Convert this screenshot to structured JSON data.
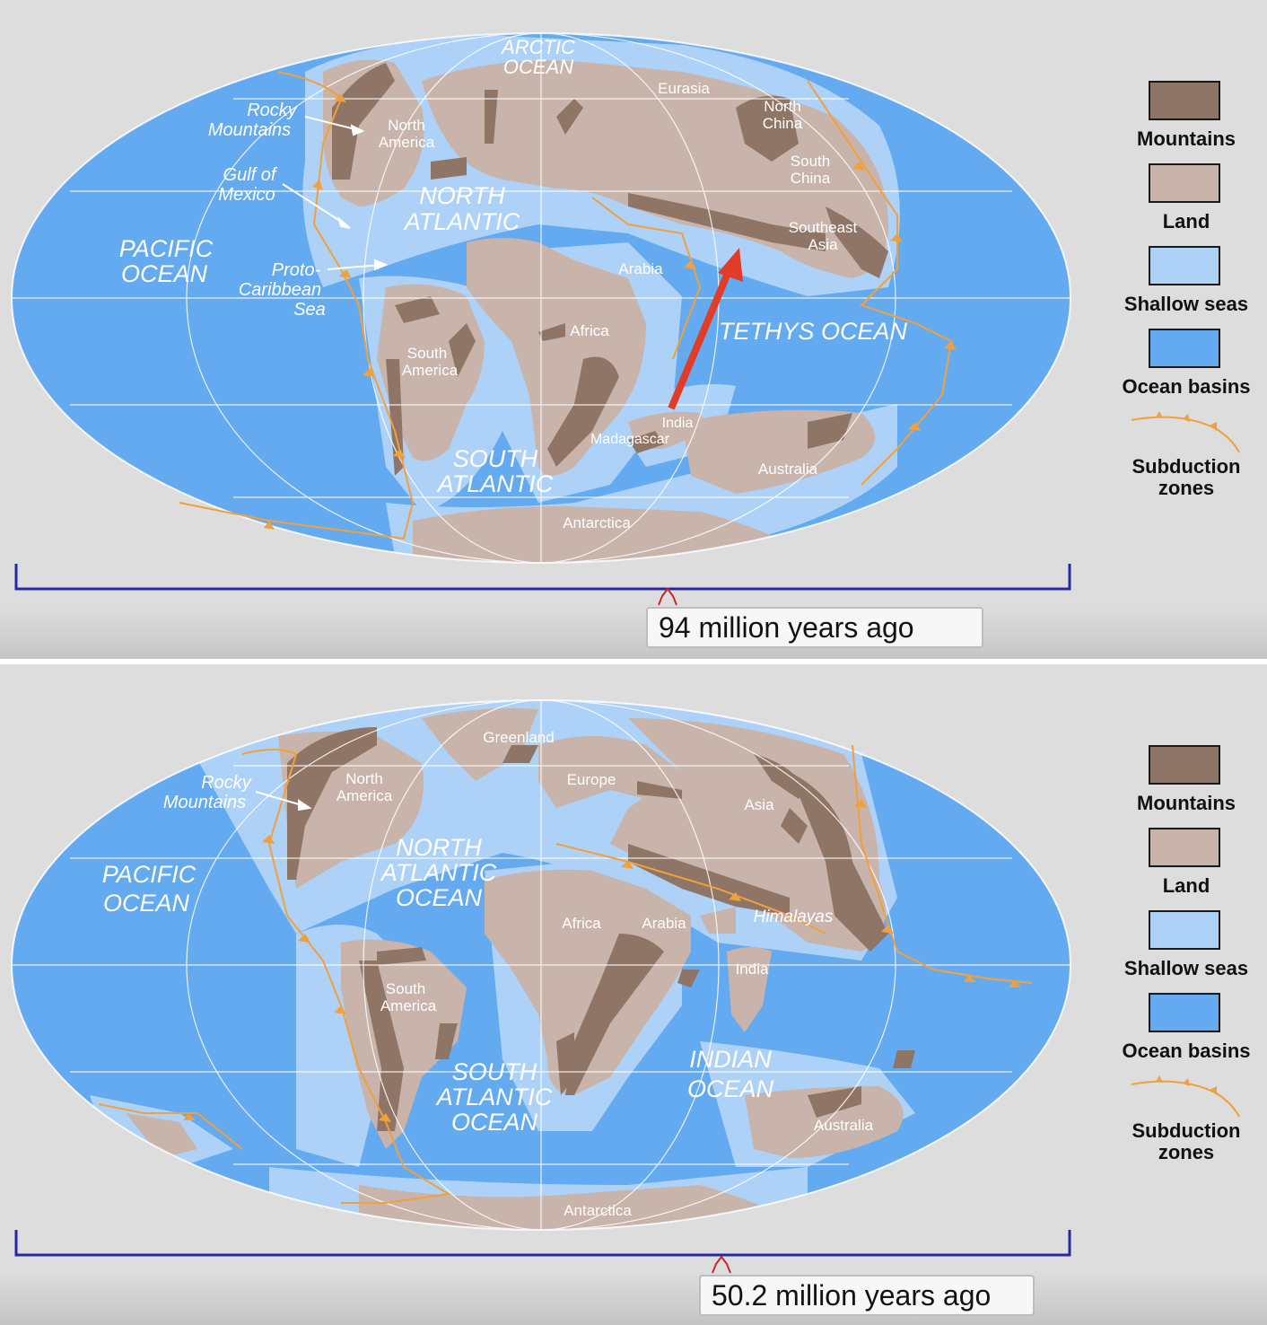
{
  "panels": [
    {
      "time_label": "94 million years ago",
      "labels": {
        "arctic_ocean_1": "ARCTIC",
        "arctic_ocean_2": "OCEAN",
        "eurasia": "Eurasia",
        "north_china_1": "North",
        "north_china_2": "China",
        "south_china_1": "South",
        "south_china_2": "China",
        "southeast_asia_1": "Southeast",
        "southeast_asia_2": "Asia",
        "rocky_1": "Rocky",
        "rocky_2": "Mountains",
        "north_america_1": "North",
        "north_america_2": "America",
        "gulf_1": "Gulf of",
        "gulf_2": "Mexico",
        "north_atlantic_1": "NORTH",
        "north_atlantic_2": "ATLANTIC",
        "pacific_1": "PACIFIC",
        "pacific_2": "OCEAN",
        "proto_1": "Proto-",
        "proto_2": "Caribbean",
        "proto_3": "Sea",
        "arabia": "Arabia",
        "africa": "Africa",
        "tethys": "TETHYS  OCEAN",
        "south_america_1": "South",
        "south_america_2": "America",
        "india": "India",
        "madagascar": "Madagascar",
        "south_atlantic_1": "SOUTH",
        "south_atlantic_2": "ATLANTIC",
        "australia": "Australia",
        "antarctica": "Antarctica"
      }
    },
    {
      "time_label": "50.2 million years ago",
      "labels": {
        "greenland": "Greenland",
        "europe": "Europe",
        "asia": "Asia",
        "rocky_1": "Rocky",
        "rocky_2": "Mountains",
        "north_america_1": "North",
        "north_america_2": "America",
        "pacific_1": "PACIFIC",
        "pacific_2": "OCEAN",
        "north_atlantic_1": "NORTH",
        "north_atlantic_2": "ATLANTIC",
        "north_atlantic_3": "OCEAN",
        "africa": "Africa",
        "arabia": "Arabia",
        "himalayas": "Himalayas",
        "india": "India",
        "south_america_1": "South",
        "south_america_2": "America",
        "south_atlantic_1": "SOUTH",
        "south_atlantic_2": "ATLANTIC",
        "south_atlantic_3": "OCEAN",
        "indian_ocean_1": "INDIAN",
        "indian_ocean_2": "OCEAN",
        "australia": "Australia",
        "antarctica": "Antarctica"
      }
    }
  ],
  "legend": {
    "mountains": "Mountains",
    "land": "Land",
    "shallow_seas": "Shallow seas",
    "ocean_basins": "Ocean basins",
    "subduction_1": "Subduction",
    "subduction_2": "zones"
  },
  "colors": {
    "mountains": "#8f7566",
    "land": "#c8b4aa",
    "shallow_seas": "#aed2f7",
    "ocean_basins": "#64aaf0",
    "subduction": "#f0a03c",
    "arrow": "#e03c28",
    "timeline": "#2828a0"
  }
}
